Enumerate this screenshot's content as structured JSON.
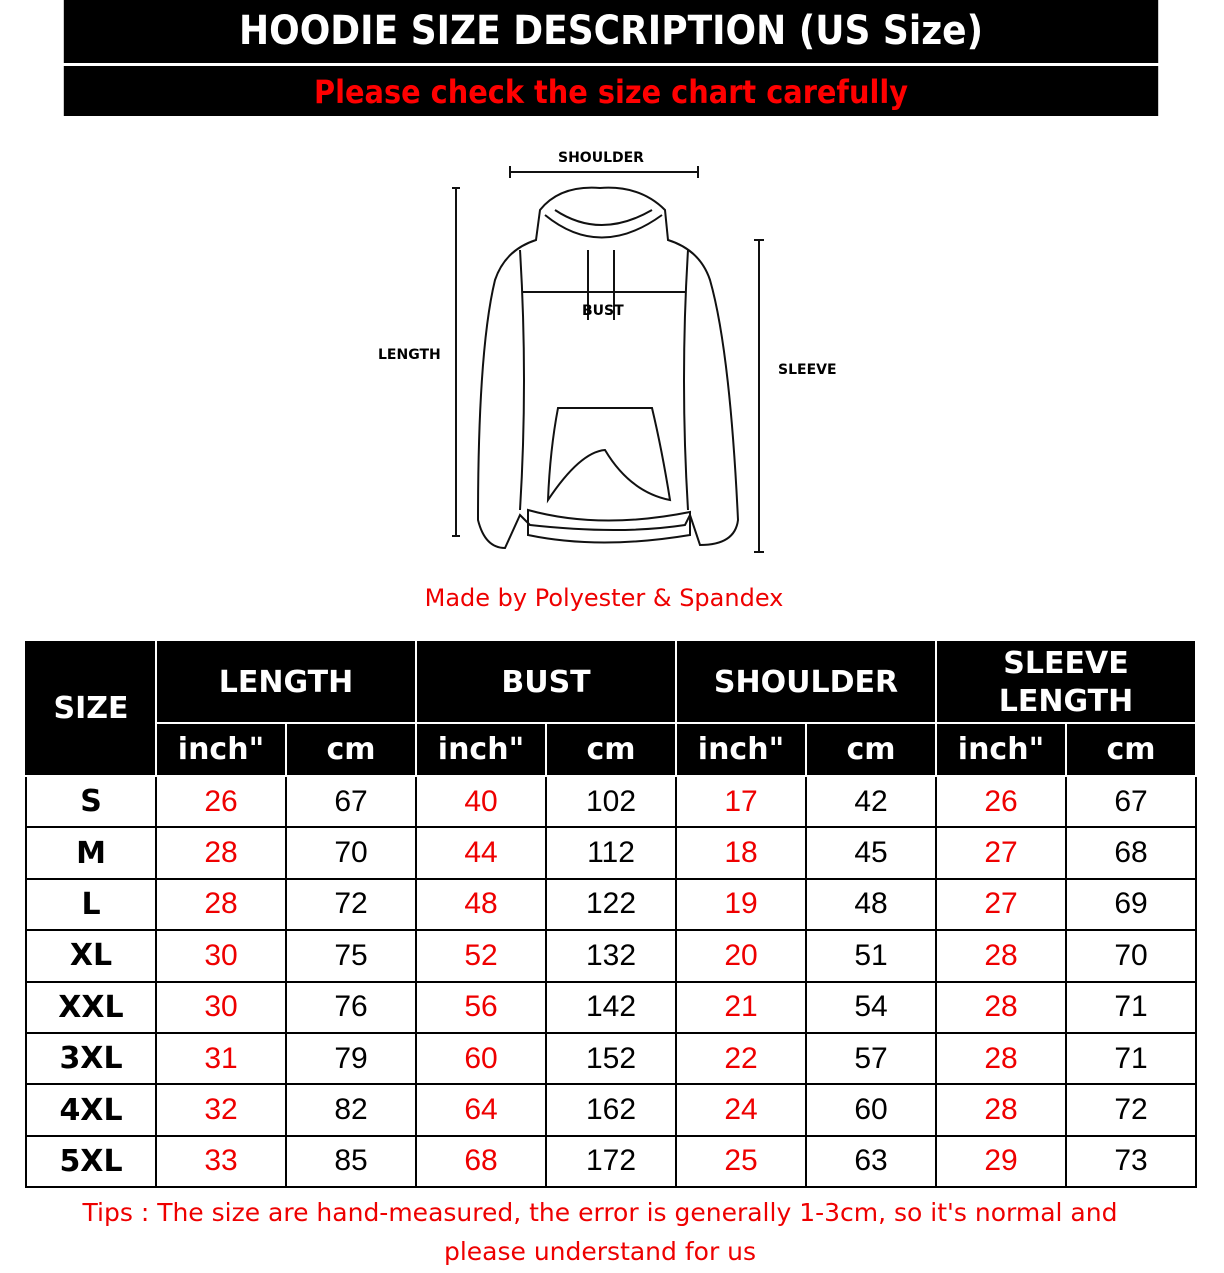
{
  "header": {
    "title": "HOODIE SIZE DESCRIPTION (US Size)",
    "subtitle": "Please check the size chart carefully"
  },
  "diagram": {
    "shoulder": "SHOULDER",
    "bust": "BUST",
    "length": "LENGTH",
    "sleeve": "SLEEVE"
  },
  "fabric": "Made by Polyester & Spandex",
  "table": {
    "size_header": "SIZE",
    "groups": [
      "LENGTH",
      "BUST",
      "SHOULDER",
      "SLEEVE LENGTH"
    ],
    "units": [
      "inch\"",
      "cm"
    ],
    "rows": [
      {
        "size": "S",
        "values": [
          "26",
          "67",
          "40",
          "102",
          "17",
          "42",
          "26",
          "67"
        ]
      },
      {
        "size": "M",
        "values": [
          "28",
          "70",
          "44",
          "112",
          "18",
          "45",
          "27",
          "68"
        ]
      },
      {
        "size": "L",
        "values": [
          "28",
          "72",
          "48",
          "122",
          "19",
          "48",
          "27",
          "69"
        ]
      },
      {
        "size": "XL",
        "values": [
          "30",
          "75",
          "52",
          "132",
          "20",
          "51",
          "28",
          "70"
        ]
      },
      {
        "size": "XXL",
        "values": [
          "30",
          "76",
          "56",
          "142",
          "21",
          "54",
          "28",
          "71"
        ]
      },
      {
        "size": "3XL",
        "values": [
          "31",
          "79",
          "60",
          "152",
          "22",
          "57",
          "28",
          "71"
        ]
      },
      {
        "size": "4XL",
        "values": [
          "32",
          "82",
          "64",
          "162",
          "24",
          "60",
          "28",
          "72"
        ]
      },
      {
        "size": "5XL",
        "values": [
          "33",
          "85",
          "68",
          "172",
          "25",
          "63",
          "29",
          "73"
        ]
      }
    ]
  },
  "tips": "Tips : The size are hand-measured, the error is generally 1-3cm, so it's normal and please understand for us"
}
